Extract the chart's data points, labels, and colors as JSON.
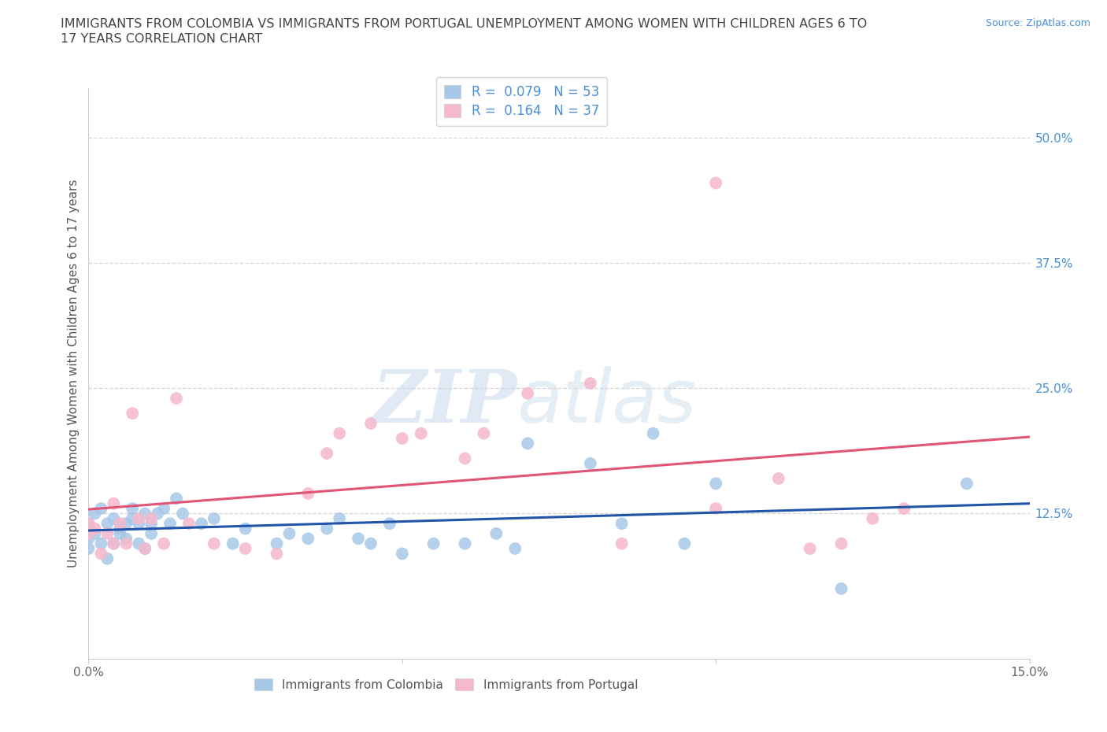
{
  "title_line1": "IMMIGRANTS FROM COLOMBIA VS IMMIGRANTS FROM PORTUGAL UNEMPLOYMENT AMONG WOMEN WITH CHILDREN AGES 6 TO",
  "title_line2": "17 YEARS CORRELATION CHART",
  "ylabel": "Unemployment Among Women with Children Ages 6 to 17 years",
  "source": "Source: ZipAtlas.com",
  "xlim": [
    0.0,
    0.15
  ],
  "ylim": [
    -0.02,
    0.55
  ],
  "ytick_positions": [
    0.125,
    0.25,
    0.375,
    0.5
  ],
  "ytick_labels": [
    "12.5%",
    "25.0%",
    "37.5%",
    "50.0%"
  ],
  "colombia_color": "#a8c8e8",
  "portugal_color": "#f5b8cc",
  "colombia_line_color": "#2255aa",
  "portugal_line_color": "#e05575",
  "colombia_R": 0.079,
  "colombia_N": 53,
  "portugal_R": 0.164,
  "portugal_N": 37,
  "colombia_x": [
    0.0,
    0.0,
    0.0,
    0.001,
    0.001,
    0.002,
    0.002,
    0.003,
    0.003,
    0.004,
    0.004,
    0.005,
    0.005,
    0.006,
    0.006,
    0.007,
    0.007,
    0.008,
    0.008,
    0.009,
    0.009,
    0.01,
    0.01,
    0.011,
    0.012,
    0.013,
    0.014,
    0.015,
    0.018,
    0.02,
    0.023,
    0.025,
    0.03,
    0.032,
    0.035,
    0.038,
    0.04,
    0.043,
    0.045,
    0.048,
    0.05,
    0.055,
    0.06,
    0.065,
    0.068,
    0.07,
    0.08,
    0.085,
    0.09,
    0.095,
    0.1,
    0.12,
    0.14
  ],
  "colombia_y": [
    0.115,
    0.1,
    0.09,
    0.125,
    0.105,
    0.13,
    0.095,
    0.115,
    0.08,
    0.12,
    0.095,
    0.11,
    0.105,
    0.115,
    0.1,
    0.13,
    0.12,
    0.115,
    0.095,
    0.125,
    0.09,
    0.115,
    0.105,
    0.125,
    0.13,
    0.115,
    0.14,
    0.125,
    0.115,
    0.12,
    0.095,
    0.11,
    0.095,
    0.105,
    0.1,
    0.11,
    0.12,
    0.1,
    0.095,
    0.115,
    0.085,
    0.095,
    0.095,
    0.105,
    0.09,
    0.195,
    0.175,
    0.115,
    0.205,
    0.095,
    0.155,
    0.05,
    0.155
  ],
  "portugal_x": [
    0.0,
    0.0,
    0.001,
    0.002,
    0.003,
    0.004,
    0.004,
    0.005,
    0.006,
    0.007,
    0.008,
    0.009,
    0.01,
    0.012,
    0.014,
    0.016,
    0.02,
    0.025,
    0.03,
    0.035,
    0.038,
    0.04,
    0.045,
    0.05,
    0.053,
    0.06,
    0.063,
    0.07,
    0.08,
    0.085,
    0.1,
    0.1,
    0.11,
    0.115,
    0.12,
    0.125,
    0.13
  ],
  "portugal_y": [
    0.105,
    0.115,
    0.11,
    0.085,
    0.105,
    0.095,
    0.135,
    0.115,
    0.095,
    0.225,
    0.12,
    0.09,
    0.12,
    0.095,
    0.24,
    0.115,
    0.095,
    0.09,
    0.085,
    0.145,
    0.185,
    0.205,
    0.215,
    0.2,
    0.205,
    0.18,
    0.205,
    0.245,
    0.255,
    0.095,
    0.455,
    0.13,
    0.16,
    0.09,
    0.095,
    0.12,
    0.13
  ],
  "background_color": "#ffffff",
  "grid_color": "#cccccc",
  "watermark_zip": "ZIP",
  "watermark_atlas": "atlas",
  "legend_label_1": "Immigrants from Colombia",
  "legend_label_2": "Immigrants from Portugal"
}
